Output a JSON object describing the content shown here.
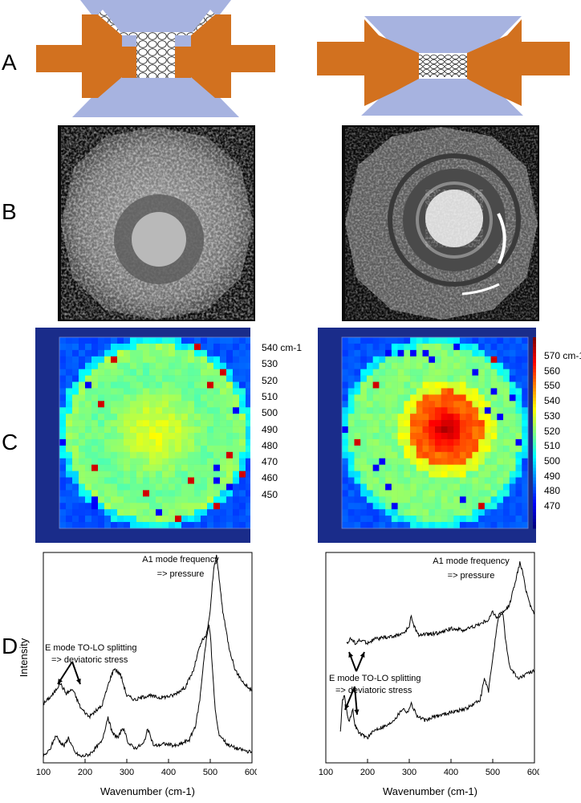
{
  "panels": {
    "A": "A",
    "B": "B",
    "C": "C",
    "D": "D"
  },
  "colors": {
    "anvil": "#a7b3e0",
    "gasket": "#d2711f",
    "map_bg": "#1a2c8a",
    "spectrum_line": "#000000"
  },
  "colorbars": [
    {
      "labels": [
        "540 cm-1",
        "530",
        "520",
        "510",
        "500",
        "490",
        "480",
        "470",
        "460",
        "450"
      ],
      "unit_sup": "-1"
    },
    {
      "labels": [
        "570 cm-1",
        "560",
        "550",
        "540",
        "530",
        "520",
        "510",
        "500",
        "490",
        "480",
        "470"
      ],
      "unit_sup": "-1"
    }
  ],
  "chart_data": [
    {
      "type": "line",
      "xlabel": "Wavenumber (cm-1)",
      "ylabel": "Intensity",
      "xlim": [
        100,
        600
      ],
      "xticks": [
        100,
        200,
        300,
        400,
        500,
        600
      ],
      "annotations": {
        "a1_line1": "A1 mode frequency",
        "a1_line2": "=> pressure",
        "e_line1": "E mode TO-LO splitting",
        "e_line2": "=> deviatoric stress"
      },
      "series": [
        {
          "x": [
            100,
            125,
            140,
            155,
            170,
            190,
            210,
            240,
            260,
            270,
            285,
            300,
            320,
            350,
            380,
            410,
            440,
            460,
            470,
            480,
            490,
            500,
            505,
            510,
            515,
            520,
            530,
            545,
            560,
            580,
            600
          ],
          "y": [
            0.28,
            0.33,
            0.38,
            0.33,
            0.35,
            0.26,
            0.22,
            0.27,
            0.4,
            0.45,
            0.42,
            0.32,
            0.3,
            0.32,
            0.31,
            0.32,
            0.36,
            0.44,
            0.52,
            0.58,
            0.6,
            0.72,
            0.85,
            0.95,
            0.98,
            0.9,
            0.72,
            0.55,
            0.44,
            0.38,
            0.34
          ]
        },
        {
          "x": [
            100,
            115,
            130,
            140,
            150,
            160,
            175,
            190,
            210,
            240,
            255,
            265,
            280,
            290,
            305,
            320,
            340,
            350,
            365,
            390,
            420,
            450,
            465,
            475,
            485,
            492,
            497,
            500,
            505,
            512,
            520,
            540,
            560,
            580,
            600
          ],
          "y": [
            0.03,
            0.06,
            0.13,
            0.1,
            0.08,
            0.12,
            0.05,
            0.03,
            0.04,
            0.1,
            0.22,
            0.14,
            0.12,
            0.17,
            0.09,
            0.07,
            0.09,
            0.16,
            0.08,
            0.09,
            0.08,
            0.11,
            0.18,
            0.3,
            0.5,
            0.6,
            0.66,
            0.62,
            0.45,
            0.25,
            0.14,
            0.09,
            0.07,
            0.06,
            0.05
          ]
        }
      ]
    },
    {
      "type": "line",
      "xlabel": "Wavenumber (cm-1)",
      "ylabel": "",
      "xlim": [
        100,
        600
      ],
      "xticks": [
        100,
        200,
        300,
        400,
        500,
        600
      ],
      "annotations": {
        "a1_line1": "A1 mode frequency",
        "a1_line2": "=> pressure",
        "e_line1": "E mode TO-LO splitting",
        "e_line2": "=> deviatoric stress"
      },
      "series": [
        {
          "x": [
            150,
            160,
            170,
            180,
            190,
            200,
            220,
            260,
            290,
            300,
            305,
            310,
            320,
            340,
            380,
            400,
            430,
            470,
            490,
            500,
            510,
            520,
            540,
            550,
            560,
            565,
            570,
            580,
            590,
            600
          ],
          "y": [
            0.57,
            0.59,
            0.57,
            0.58,
            0.58,
            0.57,
            0.59,
            0.6,
            0.62,
            0.65,
            0.7,
            0.66,
            0.61,
            0.61,
            0.62,
            0.64,
            0.63,
            0.66,
            0.68,
            0.72,
            0.69,
            0.7,
            0.75,
            0.83,
            0.91,
            0.95,
            0.92,
            0.82,
            0.75,
            0.71
          ]
        },
        {
          "x": [
            135,
            140,
            145,
            150,
            155,
            160,
            165,
            170,
            180,
            200,
            220,
            250,
            270,
            285,
            295,
            305,
            320,
            340,
            360,
            400,
            440,
            470,
            480,
            490,
            500,
            510,
            515,
            520,
            525,
            530,
            540,
            560,
            580,
            600
          ],
          "y": [
            0.15,
            0.3,
            0.32,
            0.25,
            0.2,
            0.22,
            0.25,
            0.18,
            0.14,
            0.12,
            0.16,
            0.18,
            0.22,
            0.26,
            0.24,
            0.28,
            0.22,
            0.2,
            0.22,
            0.24,
            0.26,
            0.3,
            0.4,
            0.34,
            0.5,
            0.64,
            0.7,
            0.72,
            0.7,
            0.6,
            0.46,
            0.4,
            0.42,
            0.44
          ]
        }
      ]
    }
  ]
}
